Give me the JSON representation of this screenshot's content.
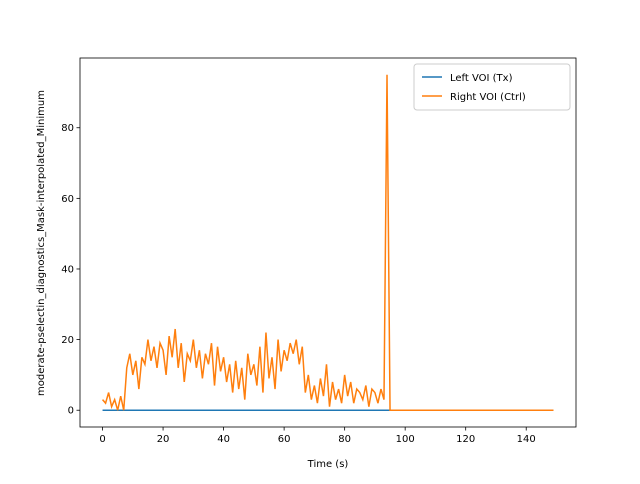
{
  "chart_data": {
    "type": "line",
    "xlabel": "Time (s)",
    "ylabel": "moderate-pselectin_diagnostics_Mask-interpolated_Minimum",
    "x": [
      0,
      1,
      2,
      3,
      4,
      5,
      6,
      7,
      8,
      9,
      10,
      11,
      12,
      13,
      14,
      15,
      16,
      17,
      18,
      19,
      20,
      21,
      22,
      23,
      24,
      25,
      26,
      27,
      28,
      29,
      30,
      31,
      32,
      33,
      34,
      35,
      36,
      37,
      38,
      39,
      40,
      41,
      42,
      43,
      44,
      45,
      46,
      47,
      48,
      49,
      50,
      51,
      52,
      53,
      54,
      55,
      56,
      57,
      58,
      59,
      60,
      61,
      62,
      63,
      64,
      65,
      66,
      67,
      68,
      69,
      70,
      71,
      72,
      73,
      74,
      75,
      76,
      77,
      78,
      79,
      80,
      81,
      82,
      83,
      84,
      85,
      86,
      87,
      88,
      89,
      90,
      91,
      92,
      93,
      94,
      95,
      96,
      97,
      98,
      99,
      100,
      101,
      102,
      103,
      104,
      105,
      106,
      107,
      108,
      109,
      110,
      111,
      112,
      113,
      114,
      115,
      116,
      117,
      118,
      119,
      120,
      121,
      122,
      123,
      124,
      125,
      126,
      127,
      128,
      129,
      130,
      131,
      132,
      133,
      134,
      135,
      136,
      137,
      138,
      139,
      140,
      141,
      142,
      143,
      144,
      145,
      146,
      147,
      148,
      149
    ],
    "series": [
      {
        "name": "Left VOI (Tx)",
        "color": "#1f77b4",
        "values": [
          0,
          0,
          0,
          0,
          0,
          0,
          0,
          0,
          0,
          0,
          0,
          0,
          0,
          0,
          0,
          0,
          0,
          0,
          0,
          0,
          0,
          0,
          0,
          0,
          0,
          0,
          0,
          0,
          0,
          0,
          0,
          0,
          0,
          0,
          0,
          0,
          0,
          0,
          0,
          0,
          0,
          0,
          0,
          0,
          0,
          0,
          0,
          0,
          0,
          0,
          0,
          0,
          0,
          0,
          0,
          0,
          0,
          0,
          0,
          0,
          0,
          0,
          0,
          0,
          0,
          0,
          0,
          0,
          0,
          0,
          0,
          0,
          0,
          0,
          0,
          0,
          0,
          0,
          0,
          0,
          0,
          0,
          0,
          0,
          0,
          0,
          0,
          0,
          0,
          0,
          0,
          0,
          0,
          0,
          0,
          0,
          0,
          0,
          0,
          0,
          0,
          0,
          0,
          0,
          0,
          0,
          0,
          0,
          0,
          0,
          0,
          0,
          0,
          0,
          0,
          0,
          0,
          0,
          0,
          0,
          0,
          0,
          0,
          0,
          0,
          0,
          0,
          0,
          0,
          0,
          0,
          0,
          0,
          0,
          0,
          0,
          0,
          0,
          0,
          0,
          0,
          0,
          0,
          0,
          0,
          0,
          0,
          0,
          0,
          0
        ]
      },
      {
        "name": "Right VOI (Ctrl)",
        "color": "#ff7f0e",
        "values": [
          3,
          2,
          5,
          1,
          3,
          0,
          4,
          0,
          12,
          16,
          10,
          14,
          6,
          15,
          13,
          20,
          14,
          18,
          12,
          19,
          17,
          10,
          21,
          15,
          23,
          12,
          19,
          8,
          16,
          14,
          20,
          12,
          17,
          9,
          16,
          13,
          19,
          7,
          18,
          11,
          15,
          8,
          13,
          5,
          14,
          6,
          12,
          3,
          16,
          10,
          13,
          7,
          18,
          5,
          22,
          9,
          15,
          6,
          20,
          11,
          17,
          14,
          19,
          16,
          20,
          13,
          18,
          5,
          10,
          3,
          7,
          2,
          9,
          4,
          13,
          1,
          8,
          3,
          6,
          2,
          10,
          4,
          8,
          2,
          6,
          5,
          3,
          7,
          1,
          6,
          5,
          2,
          6,
          3,
          95,
          0,
          0,
          0,
          0,
          0,
          0,
          0,
          0,
          0,
          0,
          0,
          0,
          0,
          0,
          0,
          0,
          0,
          0,
          0,
          0,
          0,
          0,
          0,
          0,
          0,
          0,
          0,
          0,
          0,
          0,
          0,
          0,
          0,
          0,
          0,
          0,
          0,
          0,
          0,
          0,
          0,
          0,
          0,
          0,
          0,
          0,
          0,
          0,
          0,
          0,
          0,
          0,
          0,
          0,
          0
        ]
      }
    ],
    "xlim": [
      -7.45,
      156.45
    ],
    "ylim": [
      -4.75,
      99.75
    ],
    "xticks": [
      0,
      20,
      40,
      60,
      80,
      100,
      120,
      140
    ],
    "yticks": [
      0,
      20,
      40,
      60,
      80
    ],
    "legend": "upper right"
  }
}
